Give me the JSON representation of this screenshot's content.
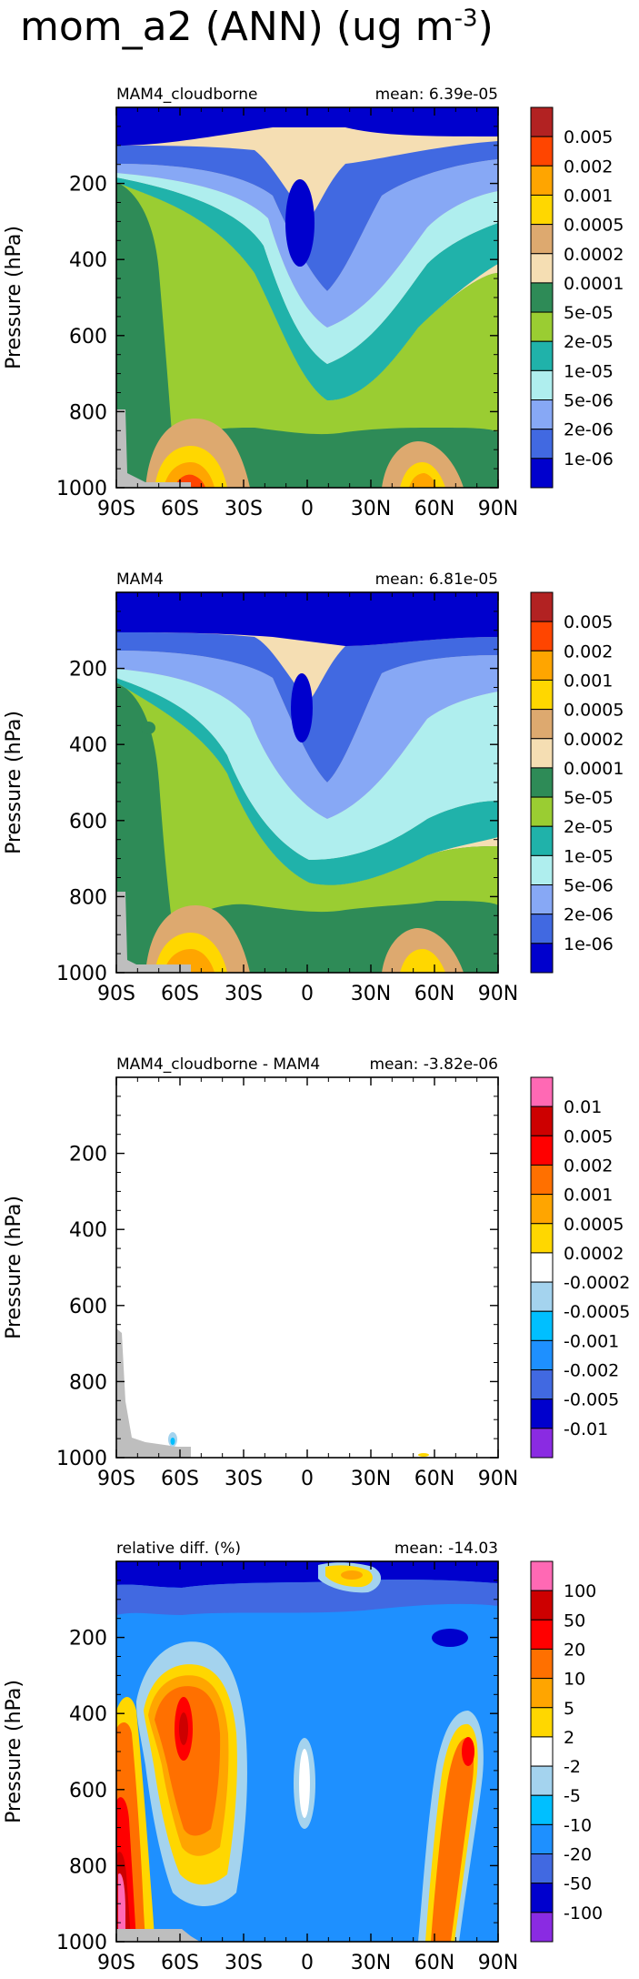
{
  "title": {
    "text": "mom_a2 (ANN) (ug m",
    "sup": "-3",
    "close": ")"
  },
  "panels": [
    {
      "id": "p1",
      "left_label": "MAM4_cloudborne",
      "right_label": "mean: 6.39e-05",
      "ylabel": "Pressure (hPa)",
      "yticks": [
        "200",
        "400",
        "600",
        "800",
        "1000"
      ],
      "xticks": [
        "90S",
        "60S",
        "30S",
        "0",
        "30N",
        "60N",
        "90N"
      ],
      "colorbar_labels": [
        "0.005",
        "0.002",
        "0.001",
        "0.0005",
        "0.0002",
        "0.0001",
        "5e-05",
        "2e-05",
        "1e-05",
        "5e-06",
        "2e-06",
        "1e-06"
      ],
      "colorbar_colors": [
        "#b22222",
        "#ff4500",
        "#ffa500",
        "#ffd700",
        "#dda96f",
        "#f5deb3",
        "#2e8b57",
        "#9acd32",
        "#20b2aa",
        "#afeeee",
        "#87a8f5",
        "#4169e1",
        "#0000cd"
      ]
    },
    {
      "id": "p2",
      "left_label": "MAM4",
      "right_label": "mean: 6.81e-05",
      "ylabel": "Pressure (hPa)",
      "yticks": [
        "200",
        "400",
        "600",
        "800",
        "1000"
      ],
      "xticks": [
        "90S",
        "60S",
        "30S",
        "0",
        "30N",
        "60N",
        "90N"
      ],
      "colorbar_labels": [
        "0.005",
        "0.002",
        "0.001",
        "0.0005",
        "0.0002",
        "0.0001",
        "5e-05",
        "2e-05",
        "1e-05",
        "5e-06",
        "2e-06",
        "1e-06"
      ],
      "colorbar_colors": [
        "#b22222",
        "#ff4500",
        "#ffa500",
        "#ffd700",
        "#dda96f",
        "#f5deb3",
        "#2e8b57",
        "#9acd32",
        "#20b2aa",
        "#afeeee",
        "#87a8f5",
        "#4169e1",
        "#0000cd"
      ]
    },
    {
      "id": "p3",
      "left_label": "MAM4_cloudborne - MAM4",
      "right_label": "mean: -3.82e-06",
      "ylabel": "Pressure (hPa)",
      "yticks": [
        "200",
        "400",
        "600",
        "800",
        "1000"
      ],
      "xticks": [
        "90S",
        "60S",
        "30S",
        "0",
        "30N",
        "60N",
        "90N"
      ],
      "colorbar_labels": [
        "0.01",
        "0.005",
        "0.002",
        "0.001",
        "0.0005",
        "0.0002",
        "-0.0002",
        "-0.0005",
        "-0.001",
        "-0.002",
        "-0.005",
        "-0.01"
      ],
      "colorbar_colors": [
        "#ff69b4",
        "#cd0000",
        "#ff0000",
        "#ff7000",
        "#ffa500",
        "#ffd700",
        "#ffffff",
        "#a4d3ee",
        "#00bfff",
        "#1e90ff",
        "#4169e1",
        "#0000cd",
        "#8a2be2"
      ]
    },
    {
      "id": "p4",
      "left_label": "relative diff. (%)",
      "right_label": "mean: -14.03",
      "ylabel": "Pressure (hPa)",
      "yticks": [
        "200",
        "400",
        "600",
        "800",
        "1000"
      ],
      "xticks": [
        "90S",
        "60S",
        "30S",
        "0",
        "30N",
        "60N",
        "90N"
      ],
      "colorbar_labels": [
        "100",
        "50",
        "20",
        "10",
        "5",
        "2",
        "-2",
        "-5",
        "-10",
        "-20",
        "-50",
        "-100"
      ],
      "colorbar_colors": [
        "#ff69b4",
        "#cd0000",
        "#ff0000",
        "#ff7000",
        "#ffa500",
        "#ffd700",
        "#ffffff",
        "#a4d3ee",
        "#00bfff",
        "#1e90ff",
        "#4169e1",
        "#0000cd",
        "#8a2be2"
      ]
    }
  ],
  "chart_data": [
    {
      "type": "heatmap",
      "title": "MAM4_cloudborne",
      "annotation": "mean: 6.39e-05",
      "xlabel": "",
      "ylabel": "Pressure (hPa)",
      "x_ticks": [
        "90S",
        "60S",
        "30S",
        "0",
        "30N",
        "60N",
        "90N"
      ],
      "y_ticks": [
        200,
        400,
        600,
        800,
        1000
      ],
      "ylim": [
        1000,
        0
      ],
      "levels": [
        1e-06,
        2e-06,
        5e-06,
        1e-05,
        2e-05,
        5e-05,
        0.0001,
        0.0002,
        0.0005,
        0.001,
        0.002,
        0.005
      ]
    },
    {
      "type": "heatmap",
      "title": "MAM4",
      "annotation": "mean: 6.81e-05",
      "xlabel": "",
      "ylabel": "Pressure (hPa)",
      "x_ticks": [
        "90S",
        "60S",
        "30S",
        "0",
        "30N",
        "60N",
        "90N"
      ],
      "y_ticks": [
        200,
        400,
        600,
        800,
        1000
      ],
      "ylim": [
        1000,
        0
      ],
      "levels": [
        1e-06,
        2e-06,
        5e-06,
        1e-05,
        2e-05,
        5e-05,
        0.0001,
        0.0002,
        0.0005,
        0.001,
        0.002,
        0.005
      ]
    },
    {
      "type": "heatmap",
      "title": "MAM4_cloudborne - MAM4",
      "annotation": "mean: -3.82e-06",
      "xlabel": "",
      "ylabel": "Pressure (hPa)",
      "x_ticks": [
        "90S",
        "60S",
        "30S",
        "0",
        "30N",
        "60N",
        "90N"
      ],
      "y_ticks": [
        200,
        400,
        600,
        800,
        1000
      ],
      "ylim": [
        1000,
        0
      ],
      "levels": [
        -0.01,
        -0.005,
        -0.002,
        -0.001,
        -0.0005,
        -0.0002,
        0.0002,
        0.0005,
        0.001,
        0.002,
        0.005,
        0.01
      ]
    },
    {
      "type": "heatmap",
      "title": "relative diff. (%)",
      "annotation": "mean: -14.03",
      "xlabel": "",
      "ylabel": "Pressure (hPa)",
      "x_ticks": [
        "90S",
        "60S",
        "30S",
        "0",
        "30N",
        "60N",
        "90N"
      ],
      "y_ticks": [
        200,
        400,
        600,
        800,
        1000
      ],
      "ylim": [
        1000,
        0
      ],
      "levels": [
        -100,
        -50,
        -20,
        -10,
        -5,
        -2,
        2,
        5,
        10,
        20,
        50,
        100
      ]
    }
  ]
}
